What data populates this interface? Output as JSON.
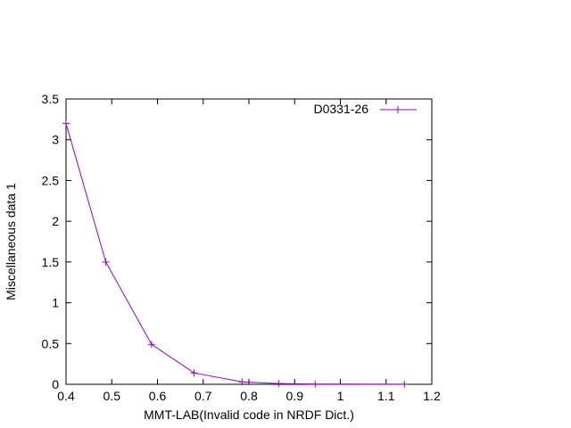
{
  "chart_data": {
    "type": "line",
    "title": "",
    "xlabel": "MMT-LAB(Invalid code in NRDF Dict.)",
    "ylabel": "Miscellaneous data 1",
    "xlim": [
      0.4,
      1.2
    ],
    "ylim": [
      0,
      3.5
    ],
    "x_ticks": [
      0.4,
      0.5,
      0.6,
      0.7,
      0.8,
      0.9,
      1,
      1.1,
      1.2
    ],
    "x_tick_labels": [
      "0.4",
      "0.5",
      "0.6",
      "0.7",
      "0.8",
      "0.9",
      "1",
      "1.1",
      "1.2"
    ],
    "y_ticks": [
      0,
      0.5,
      1,
      1.5,
      2,
      2.5,
      3,
      3.5
    ],
    "y_tick_labels": [
      "0",
      "0.5",
      "1",
      "1.5",
      "2",
      "2.5",
      "3",
      "3.5"
    ],
    "grid": false,
    "legend": "top-right",
    "series": [
      {
        "name": "D0331-26",
        "color": "#9400d3",
        "marker": "plus",
        "x": [
          0.4,
          0.487,
          0.587,
          0.68,
          0.785,
          0.865,
          0.945,
          1.14
        ],
        "y": [
          3.2,
          1.5,
          0.49,
          0.14,
          0.03,
          0.01,
          0.003,
          0.001
        ]
      }
    ]
  }
}
